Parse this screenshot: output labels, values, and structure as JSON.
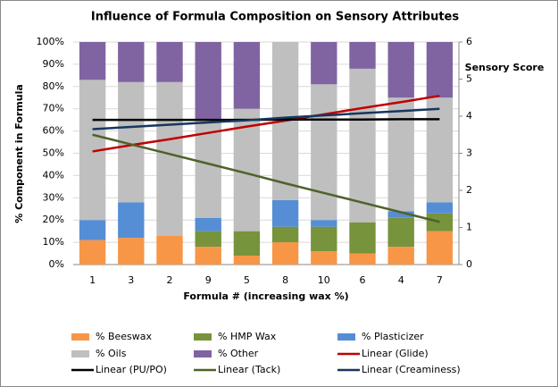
{
  "chart_data": {
    "type": "bar",
    "stacked": true,
    "title": "Influence of Formula Composition on Sensory Attributes",
    "x_label": "Formula # (increasing wax %)",
    "y_label": "% Component in Formula",
    "y2_label": "Sensory Score",
    "categories": [
      "1",
      "3",
      "2",
      "9",
      "5",
      "8",
      "10",
      "6",
      "4",
      "7"
    ],
    "ylim": [
      0,
      100
    ],
    "yticks": [
      {
        "value": 0,
        "label": "0%"
      },
      {
        "value": 10,
        "label": "10%"
      },
      {
        "value": 20,
        "label": "20%"
      },
      {
        "value": 30,
        "label": "30%"
      },
      {
        "value": 40,
        "label": "40%"
      },
      {
        "value": 50,
        "label": "50%"
      },
      {
        "value": 60,
        "label": "60%"
      },
      {
        "value": 70,
        "label": "70%"
      },
      {
        "value": 80,
        "label": "80%"
      },
      {
        "value": 90,
        "label": "90%"
      },
      {
        "value": 100,
        "label": "100%"
      }
    ],
    "y2lim": [
      0,
      6
    ],
    "y2ticks": [
      0,
      1,
      2,
      3,
      4,
      5,
      6
    ],
    "grid": true,
    "legend": "bottom",
    "series": [
      {
        "name": "% Beeswax",
        "type": "bar",
        "color": "#f79646",
        "values": [
          11,
          12,
          13,
          8,
          4,
          10,
          6,
          5,
          8,
          15
        ]
      },
      {
        "name": "% HMP Wax",
        "type": "bar",
        "color": "#77933c",
        "values": [
          0,
          0,
          0,
          7,
          11,
          7,
          11,
          14,
          13,
          8
        ]
      },
      {
        "name": "% Plasticizer",
        "type": "bar",
        "color": "#558ed5",
        "values": [
          9,
          16,
          0,
          6,
          0,
          12,
          3,
          0,
          3,
          5
        ]
      },
      {
        "name": "% Oils",
        "type": "bar",
        "color": "#bfbfbf",
        "values": [
          63,
          54,
          69,
          44,
          55,
          71,
          61,
          69,
          51,
          47
        ]
      },
      {
        "name": "% Other",
        "type": "bar",
        "color": "#8064a2",
        "values": [
          17,
          18,
          18,
          35,
          30,
          0,
          19,
          12,
          25,
          25
        ]
      },
      {
        "name": "Linear (Glide)",
        "type": "line",
        "axis": "y2",
        "color": "#c00000",
        "values": [
          3.05,
          3.22,
          3.38,
          3.55,
          3.72,
          3.88,
          4.05,
          4.22,
          4.38,
          4.55
        ]
      },
      {
        "name": "Linear (PU/PO)",
        "type": "line",
        "axis": "y2",
        "color": "#000000",
        "values": [
          3.9,
          3.9,
          3.9,
          3.9,
          3.9,
          3.91,
          3.91,
          3.91,
          3.92,
          3.92
        ]
      },
      {
        "name": "Linear (Tack)",
        "type": "line",
        "axis": "y2",
        "color": "#4f6228",
        "values": [
          3.5,
          3.24,
          2.98,
          2.72,
          2.46,
          2.19,
          1.93,
          1.67,
          1.41,
          1.15
        ]
      },
      {
        "name": "Linear (Creaminess)",
        "type": "line",
        "axis": "y2",
        "color": "#17375e",
        "values": [
          3.65,
          3.71,
          3.77,
          3.83,
          3.89,
          3.96,
          4.02,
          4.08,
          4.14,
          4.2
        ]
      }
    ]
  }
}
